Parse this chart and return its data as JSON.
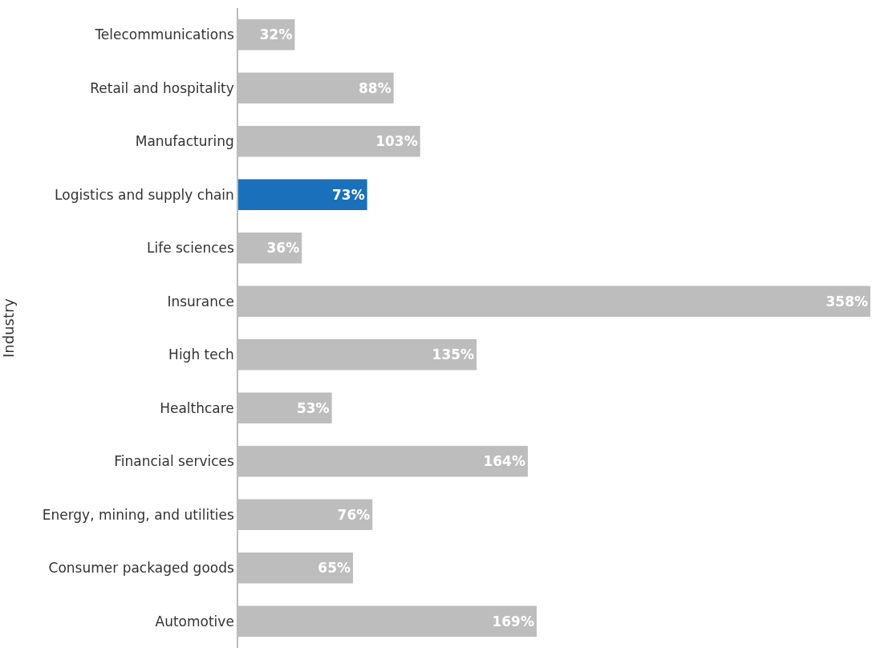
{
  "chart_data": {
    "type": "bar",
    "orientation": "horizontal",
    "ylabel": "Industry",
    "tick_labels": "y",
    "categories": [
      "Telecommunications",
      "Retail and hospitality",
      "Manufacturing",
      "Logistics and supply chain",
      "Life sciences",
      "Insurance",
      "High tech",
      "Healthcare",
      "Financial services",
      "Energy, mining, and utilities",
      "Consumer packaged goods",
      "Automotive"
    ],
    "values": [
      32,
      88,
      103,
      73,
      36,
      358,
      135,
      53,
      164,
      76,
      65,
      169
    ],
    "value_labels": [
      "32%",
      "88%",
      "103%",
      "73%",
      "36%",
      "358%",
      "135%",
      "53%",
      "164%",
      "76%",
      "65%",
      "169%"
    ],
    "colors": [
      "#bdbdbd",
      "#bdbdbd",
      "#bdbdbd",
      "#1a70bb",
      "#bdbdbd",
      "#bdbdbd",
      "#bdbdbd",
      "#bdbdbd",
      "#bdbdbd",
      "#bdbdbd",
      "#bdbdbd",
      "#bdbdbd"
    ]
  }
}
